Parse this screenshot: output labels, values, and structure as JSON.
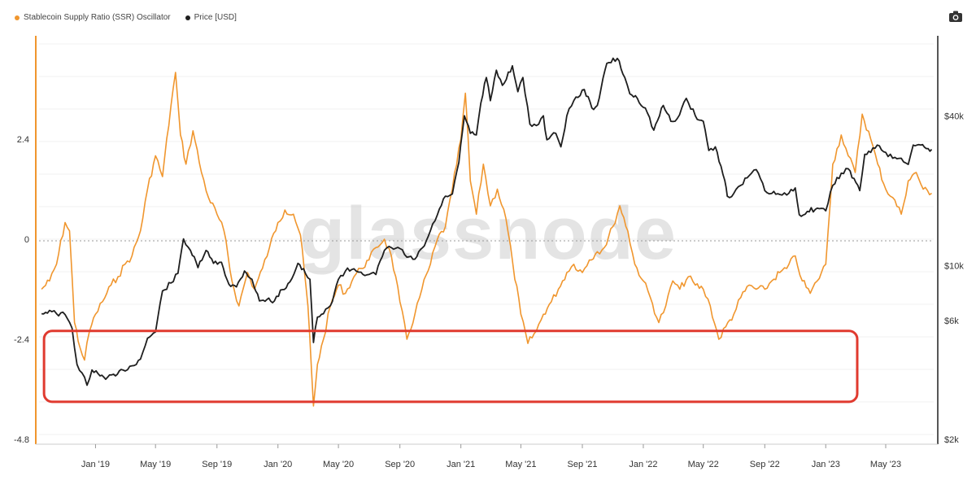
{
  "legend": {
    "ssr_label": "Stablecoin Supply Ratio (SSR) Oscillator",
    "price_label": "Price [USD]"
  },
  "watermark": "glassnode",
  "icons": {
    "camera": "camera-icon"
  },
  "colors": {
    "ssr": "#f0962e",
    "price": "#1e1e1e",
    "highlight": "#e03a2f"
  },
  "chart_data": {
    "type": "line",
    "x_ticks": [
      "Jan '19",
      "May '19",
      "Sep '19",
      "Jan '20",
      "May '20",
      "Sep '20",
      "Jan '21",
      "May '21",
      "Sep '21",
      "Jan '22",
      "May '22",
      "Sep '22",
      "Jan '23",
      "May '23"
    ],
    "left_axis": {
      "ticks": [
        "2.4",
        "0",
        "-2.4",
        "-4.8"
      ],
      "ylim": [
        -4.8,
        4.8
      ]
    },
    "right_axis": {
      "ticks": [
        "$40k",
        "$10k",
        "$6k",
        "$2k"
      ],
      "scale": "log",
      "ylim": [
        2000,
        70000
      ]
    },
    "zero_line": true,
    "highlight_box": {
      "x_from": "Nov '18",
      "x_to": "Mar '23",
      "y_from": -2.2,
      "y_to": -3.9
    },
    "series": [
      {
        "name": "Stablecoin Supply Ratio (SSR) Oscillator",
        "axis": "left",
        "points": [
          [
            "2018-09-15",
            -1.2
          ],
          [
            "2018-10-01",
            -1.0
          ],
          [
            "2018-10-15",
            -0.6
          ],
          [
            "2018-11-01",
            0.4
          ],
          [
            "2018-11-10",
            0.2
          ],
          [
            "2018-11-20",
            -2.0
          ],
          [
            "2018-12-01",
            -2.6
          ],
          [
            "2018-12-10",
            -2.9
          ],
          [
            "2018-12-20",
            -2.2
          ],
          [
            "2019-01-01",
            -1.8
          ],
          [
            "2019-01-15",
            -1.5
          ],
          [
            "2019-02-01",
            -1.1
          ],
          [
            "2019-02-15",
            -0.9
          ],
          [
            "2019-03-01",
            -0.6
          ],
          [
            "2019-03-15",
            -0.4
          ],
          [
            "2019-04-01",
            0.2
          ],
          [
            "2019-04-15",
            1.2
          ],
          [
            "2019-05-01",
            2.0
          ],
          [
            "2019-05-15",
            1.5
          ],
          [
            "2019-06-01",
            3.2
          ],
          [
            "2019-06-10",
            4.0
          ],
          [
            "2019-06-20",
            2.5
          ],
          [
            "2019-07-01",
            1.8
          ],
          [
            "2019-07-15",
            2.6
          ],
          [
            "2019-08-01",
            1.6
          ],
          [
            "2019-08-15",
            1.0
          ],
          [
            "2019-09-01",
            0.6
          ],
          [
            "2019-09-15",
            0.2
          ],
          [
            "2019-10-01",
            -1.0
          ],
          [
            "2019-10-15",
            -1.6
          ],
          [
            "2019-11-01",
            -0.8
          ],
          [
            "2019-11-15",
            -1.2
          ],
          [
            "2019-12-01",
            -0.7
          ],
          [
            "2019-12-15",
            -0.2
          ],
          [
            "2020-01-01",
            0.4
          ],
          [
            "2020-01-15",
            0.7
          ],
          [
            "2020-02-01",
            0.6
          ],
          [
            "2020-02-15",
            0.1
          ],
          [
            "2020-03-01",
            -1.6
          ],
          [
            "2020-03-12",
            -4.0
          ],
          [
            "2020-03-20",
            -3.0
          ],
          [
            "2020-04-01",
            -2.4
          ],
          [
            "2020-04-15",
            -1.6
          ],
          [
            "2020-05-01",
            -1.1
          ],
          [
            "2020-05-15",
            -1.3
          ],
          [
            "2020-06-01",
            -0.9
          ],
          [
            "2020-06-15",
            -0.7
          ],
          [
            "2020-07-01",
            -0.5
          ],
          [
            "2020-07-15",
            -0.2
          ],
          [
            "2020-08-01",
            0.0
          ],
          [
            "2020-08-15",
            -0.4
          ],
          [
            "2020-09-01",
            -1.5
          ],
          [
            "2020-09-15",
            -2.4
          ],
          [
            "2020-10-01",
            -1.8
          ],
          [
            "2020-10-15",
            -1.2
          ],
          [
            "2020-11-01",
            -0.6
          ],
          [
            "2020-11-15",
            0.0
          ],
          [
            "2020-12-01",
            0.3
          ],
          [
            "2020-12-15",
            1.2
          ],
          [
            "2021-01-01",
            2.4
          ],
          [
            "2021-01-10",
            3.5
          ],
          [
            "2021-01-20",
            1.4
          ],
          [
            "2021-02-01",
            0.6
          ],
          [
            "2021-02-15",
            1.8
          ],
          [
            "2021-03-01",
            0.8
          ],
          [
            "2021-03-15",
            1.2
          ],
          [
            "2021-04-01",
            0.5
          ],
          [
            "2021-04-15",
            -0.6
          ],
          [
            "2021-05-01",
            -1.8
          ],
          [
            "2021-05-15",
            -2.5
          ],
          [
            "2021-06-01",
            -2.2
          ],
          [
            "2021-06-15",
            -1.8
          ],
          [
            "2021-07-01",
            -1.5
          ],
          [
            "2021-07-15",
            -1.2
          ],
          [
            "2021-08-01",
            -0.8
          ],
          [
            "2021-08-15",
            -0.6
          ],
          [
            "2021-09-01",
            -0.8
          ],
          [
            "2021-09-15",
            -0.5
          ],
          [
            "2021-10-01",
            -0.3
          ],
          [
            "2021-10-15",
            -0.2
          ],
          [
            "2021-11-01",
            0.3
          ],
          [
            "2021-11-15",
            0.8
          ],
          [
            "2021-12-01",
            0.2
          ],
          [
            "2021-12-15",
            -0.6
          ],
          [
            "2022-01-01",
            -1.0
          ],
          [
            "2022-01-15",
            -1.4
          ],
          [
            "2022-02-01",
            -2.0
          ],
          [
            "2022-02-15",
            -1.6
          ],
          [
            "2022-03-01",
            -1.0
          ],
          [
            "2022-03-15",
            -1.2
          ],
          [
            "2022-04-01",
            -0.9
          ],
          [
            "2022-04-15",
            -1.1
          ],
          [
            "2022-05-01",
            -1.2
          ],
          [
            "2022-05-15",
            -1.6
          ],
          [
            "2022-06-01",
            -2.4
          ],
          [
            "2022-06-15",
            -2.1
          ],
          [
            "2022-07-01",
            -1.8
          ],
          [
            "2022-07-15",
            -1.4
          ],
          [
            "2022-08-01",
            -1.1
          ],
          [
            "2022-08-15",
            -1.2
          ],
          [
            "2022-09-01",
            -1.2
          ],
          [
            "2022-09-15",
            -1.0
          ],
          [
            "2022-10-01",
            -0.8
          ],
          [
            "2022-10-15",
            -0.7
          ],
          [
            "2022-11-01",
            -0.4
          ],
          [
            "2022-11-15",
            -1.0
          ],
          [
            "2022-12-01",
            -1.3
          ],
          [
            "2022-12-15",
            -1.0
          ],
          [
            "2023-01-01",
            -0.6
          ],
          [
            "2023-01-15",
            1.8
          ],
          [
            "2023-02-01",
            2.5
          ],
          [
            "2023-02-15",
            2.0
          ],
          [
            "2023-03-01",
            1.6
          ],
          [
            "2023-03-15",
            3.0
          ],
          [
            "2023-04-01",
            2.4
          ],
          [
            "2023-04-15",
            1.8
          ],
          [
            "2023-05-01",
            1.2
          ],
          [
            "2023-05-15",
            1.0
          ],
          [
            "2023-06-01",
            0.6
          ],
          [
            "2023-06-15",
            1.4
          ],
          [
            "2023-07-01",
            1.6
          ],
          [
            "2023-07-15",
            1.2
          ],
          [
            "2023-08-01",
            1.1
          ]
        ]
      },
      {
        "name": "Price [USD]",
        "axis": "right",
        "points": [
          [
            "2018-09-15",
            6400
          ],
          [
            "2018-10-01",
            6600
          ],
          [
            "2018-10-15",
            6400
          ],
          [
            "2018-11-01",
            6350
          ],
          [
            "2018-11-15",
            5600
          ],
          [
            "2018-11-25",
            4000
          ],
          [
            "2018-12-05",
            3700
          ],
          [
            "2018-12-15",
            3300
          ],
          [
            "2018-12-25",
            3800
          ],
          [
            "2019-01-10",
            3600
          ],
          [
            "2019-01-25",
            3550
          ],
          [
            "2019-02-10",
            3600
          ],
          [
            "2019-02-25",
            3800
          ],
          [
            "2019-03-15",
            3950
          ],
          [
            "2019-04-01",
            4200
          ],
          [
            "2019-04-15",
            5100
          ],
          [
            "2019-05-01",
            5400
          ],
          [
            "2019-05-15",
            7900
          ],
          [
            "2019-06-01",
            8500
          ],
          [
            "2019-06-15",
            9300
          ],
          [
            "2019-06-26",
            12800
          ],
          [
            "2019-07-10",
            11500
          ],
          [
            "2019-07-25",
            9800
          ],
          [
            "2019-08-10",
            11500
          ],
          [
            "2019-08-25",
            10200
          ],
          [
            "2019-09-10",
            10300
          ],
          [
            "2019-09-25",
            8400
          ],
          [
            "2019-10-10",
            8200
          ],
          [
            "2019-10-26",
            9500
          ],
          [
            "2019-11-10",
            8800
          ],
          [
            "2019-11-25",
            7200
          ],
          [
            "2019-12-10",
            7300
          ],
          [
            "2019-12-25",
            7200
          ],
          [
            "2020-01-10",
            8000
          ],
          [
            "2020-01-25",
            8600
          ],
          [
            "2020-02-10",
            10200
          ],
          [
            "2020-02-25",
            9300
          ],
          [
            "2020-03-05",
            8800
          ],
          [
            "2020-03-12",
            4900
          ],
          [
            "2020-03-20",
            6200
          ],
          [
            "2020-04-01",
            6400
          ],
          [
            "2020-04-15",
            6900
          ],
          [
            "2020-05-01",
            8800
          ],
          [
            "2020-05-15",
            9500
          ],
          [
            "2020-06-01",
            9700
          ],
          [
            "2020-06-15",
            9400
          ],
          [
            "2020-07-01",
            9200
          ],
          [
            "2020-07-15",
            9200
          ],
          [
            "2020-08-01",
            11500
          ],
          [
            "2020-08-15",
            11800
          ],
          [
            "2020-09-01",
            11700
          ],
          [
            "2020-09-15",
            10800
          ],
          [
            "2020-10-01",
            10600
          ],
          [
            "2020-10-20",
            12000
          ],
          [
            "2020-11-01",
            13800
          ],
          [
            "2020-11-15",
            16000
          ],
          [
            "2020-12-01",
            19000
          ],
          [
            "2020-12-15",
            19400
          ],
          [
            "2020-12-28",
            26000
          ],
          [
            "2021-01-08",
            40000
          ],
          [
            "2021-01-20",
            34000
          ],
          [
            "2021-02-01",
            33500
          ],
          [
            "2021-02-10",
            45000
          ],
          [
            "2021-02-21",
            57000
          ],
          [
            "2021-03-01",
            46000
          ],
          [
            "2021-03-13",
            61000
          ],
          [
            "2021-03-25",
            53000
          ],
          [
            "2021-04-14",
            63500
          ],
          [
            "2021-04-25",
            50000
          ],
          [
            "2021-05-05",
            57000
          ],
          [
            "2021-05-19",
            37000
          ],
          [
            "2021-06-01",
            36500
          ],
          [
            "2021-06-15",
            40000
          ],
          [
            "2021-06-22",
            32000
          ],
          [
            "2021-07-10",
            34000
          ],
          [
            "2021-07-20",
            30000
          ],
          [
            "2021-08-01",
            40000
          ],
          [
            "2021-08-15",
            46000
          ],
          [
            "2021-09-05",
            51000
          ],
          [
            "2021-09-20",
            43000
          ],
          [
            "2021-10-01",
            44000
          ],
          [
            "2021-10-20",
            65000
          ],
          [
            "2021-11-10",
            68000
          ],
          [
            "2021-11-25",
            57000
          ],
          [
            "2021-12-05",
            49000
          ],
          [
            "2021-12-20",
            47000
          ],
          [
            "2022-01-05",
            43000
          ],
          [
            "2022-01-22",
            35000
          ],
          [
            "2022-02-10",
            44000
          ],
          [
            "2022-02-25",
            38000
          ],
          [
            "2022-03-10",
            39000
          ],
          [
            "2022-03-28",
            47000
          ],
          [
            "2022-04-15",
            40000
          ],
          [
            "2022-05-01",
            38000
          ],
          [
            "2022-05-12",
            29000
          ],
          [
            "2022-05-25",
            30000
          ],
          [
            "2022-06-13",
            22000
          ],
          [
            "2022-06-18",
            19000
          ],
          [
            "2022-07-01",
            19500
          ],
          [
            "2022-07-15",
            21000
          ],
          [
            "2022-08-01",
            23000
          ],
          [
            "2022-08-15",
            24300
          ],
          [
            "2022-09-01",
            20000
          ],
          [
            "2022-09-15",
            19500
          ],
          [
            "2022-10-01",
            19300
          ],
          [
            "2022-10-15",
            19200
          ],
          [
            "2022-11-01",
            20500
          ],
          [
            "2022-11-09",
            16000
          ],
          [
            "2022-11-25",
            16500
          ],
          [
            "2022-12-15",
            17000
          ],
          [
            "2023-01-01",
            16600
          ],
          [
            "2023-01-15",
            21000
          ],
          [
            "2023-02-01",
            23500
          ],
          [
            "2023-02-15",
            24500
          ],
          [
            "2023-03-10",
            20000
          ],
          [
            "2023-03-20",
            28000
          ],
          [
            "2023-04-01",
            28500
          ],
          [
            "2023-04-14",
            30500
          ],
          [
            "2023-05-01",
            28500
          ],
          [
            "2023-05-15",
            27000
          ],
          [
            "2023-06-01",
            27000
          ],
          [
            "2023-06-15",
            25500
          ],
          [
            "2023-06-25",
            30500
          ],
          [
            "2023-07-10",
            30500
          ],
          [
            "2023-07-25",
            29500
          ],
          [
            "2023-08-01",
            29300
          ]
        ]
      }
    ]
  }
}
